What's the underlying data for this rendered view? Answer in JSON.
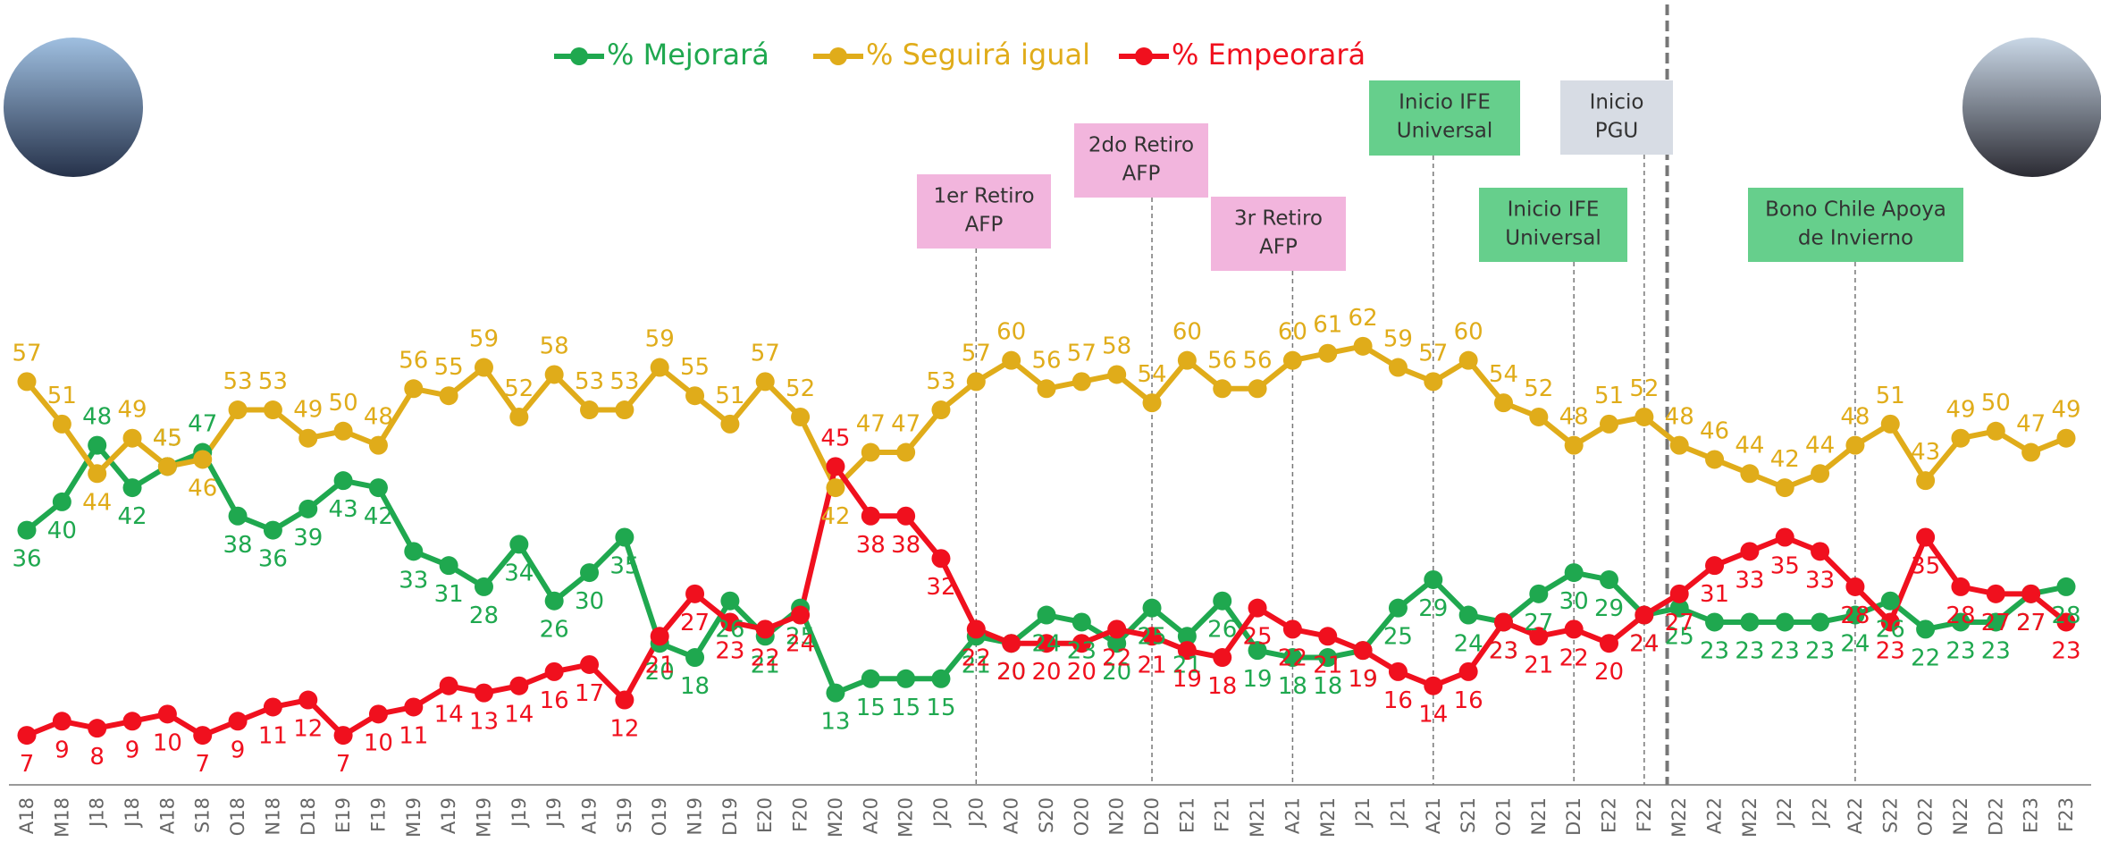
{
  "chart_data": {
    "type": "line",
    "categories": [
      "A18",
      "M18",
      "J18",
      "J18",
      "A18",
      "S18",
      "O18",
      "N18",
      "D18",
      "E19",
      "F19",
      "M19",
      "A19",
      "M19",
      "J19",
      "J19",
      "A19",
      "S19",
      "O19",
      "N19",
      "D19",
      "E20",
      "F20",
      "M20",
      "A20",
      "M20",
      "J20",
      "J20",
      "A20",
      "S20",
      "O20",
      "N20",
      "D20",
      "E21",
      "F21",
      "M21",
      "A21",
      "M21",
      "J21",
      "J21",
      "A21",
      "S21",
      "O21",
      "N21",
      "D21",
      "E22",
      "F22",
      "M22",
      "A22",
      "M22",
      "J22",
      "J22",
      "A22",
      "S22",
      "O22",
      "N22",
      "D22",
      "E23",
      "F23"
    ],
    "series": [
      {
        "name": "% Mejorará",
        "color": "#1fa84f",
        "values": [
          36,
          40,
          48,
          42,
          45,
          47,
          38,
          36,
          39,
          43,
          42,
          33,
          31,
          28,
          34,
          26,
          30,
          35,
          20,
          18,
          26,
          21,
          25,
          13,
          15,
          15,
          15,
          21,
          20,
          24,
          23,
          20,
          25,
          21,
          26,
          19,
          18,
          18,
          19,
          25,
          29,
          24,
          23,
          27,
          30,
          29,
          24,
          25,
          23,
          23,
          23,
          23,
          24,
          26,
          22,
          23,
          23,
          27,
          28
        ]
      },
      {
        "name": "% Seguirá igual",
        "color": "#e0ac1a",
        "values": [
          57,
          51,
          44,
          49,
          45,
          46,
          53,
          53,
          49,
          50,
          48,
          56,
          55,
          59,
          52,
          58,
          53,
          53,
          59,
          55,
          51,
          57,
          52,
          42,
          47,
          47,
          53,
          57,
          60,
          56,
          57,
          58,
          54,
          60,
          56,
          56,
          60,
          61,
          62,
          59,
          57,
          60,
          54,
          52,
          48,
          51,
          52,
          48,
          46,
          44,
          42,
          44,
          48,
          51,
          43,
          49,
          50,
          47,
          49
        ]
      },
      {
        "name": "% Empeorará",
        "color": "#f0101e",
        "values": [
          7,
          9,
          8,
          9,
          10,
          7,
          9,
          11,
          12,
          7,
          10,
          11,
          14,
          13,
          14,
          16,
          17,
          12,
          21,
          27,
          23,
          22,
          24,
          45,
          38,
          38,
          32,
          22,
          20,
          20,
          20,
          22,
          21,
          19,
          18,
          25,
          22,
          21,
          19,
          16,
          14,
          16,
          23,
          21,
          22,
          20,
          24,
          27,
          31,
          33,
          35,
          33,
          28,
          23,
          35,
          28,
          27,
          27,
          23
        ]
      }
    ],
    "annotations": [
      {
        "lines": [
          "1er Retiro",
          "AFP"
        ],
        "color": "#f2b5dd"
      },
      {
        "lines": [
          "2do Retiro",
          "AFP"
        ],
        "color": "#f2b5dd"
      },
      {
        "lines": [
          "3r Retiro",
          "AFP"
        ],
        "color": "#f2b5dd"
      },
      {
        "lines": [
          "Inicio IFE",
          "Universal"
        ],
        "color": "#66cf8c"
      },
      {
        "lines": [
          "Inicio IFE",
          "Universal"
        ],
        "color": "#66cf8c"
      },
      {
        "lines": [
          "Inicio",
          "PGU"
        ],
        "color": "#d7dce4"
      },
      {
        "lines": [
          "Bono Chile Apoya",
          "de Invierno"
        ],
        "color": "#66cf8c"
      }
    ],
    "ylim": [
      0,
      70
    ]
  }
}
